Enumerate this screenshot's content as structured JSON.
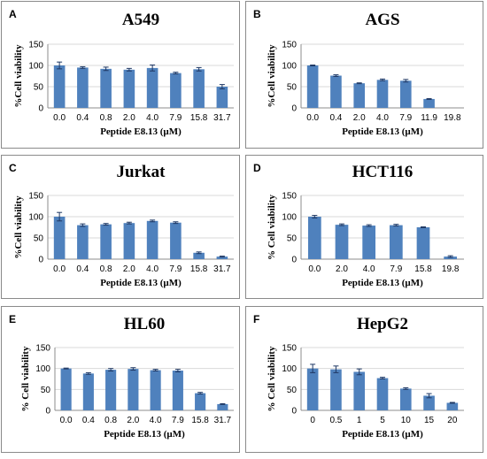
{
  "chart_data": [
    {
      "type": "bar",
      "panel_label": "A",
      "title": "A549",
      "xlabel": "Peptide E8.13 (µM)",
      "ylabel": "%Cell viability",
      "ylim": [
        0,
        150
      ],
      "yticks": [
        0,
        50,
        100,
        150
      ],
      "grid": true,
      "categories": [
        "0.0",
        "0.4",
        "0.8",
        "2.0",
        "4.0",
        "7.9",
        "15.8",
        "31.7"
      ],
      "values": [
        100,
        95,
        92,
        90,
        94,
        82,
        91,
        50
      ],
      "errors": [
        8,
        2,
        4,
        3,
        7,
        2,
        4,
        5
      ]
    },
    {
      "type": "bar",
      "panel_label": "B",
      "title": "AGS",
      "xlabel": "Peptide E8.13 (µM)",
      "ylabel": "%Cell viability",
      "ylim": [
        0,
        150
      ],
      "yticks": [
        0,
        50,
        100,
        150
      ],
      "grid": true,
      "categories": [
        "0.0",
        "0.4",
        "2.0",
        "4.0",
        "7.9",
        "11.9",
        "19.8"
      ],
      "values": [
        100,
        76,
        58,
        66,
        64,
        21,
        0
      ],
      "errors": [
        1,
        2,
        1,
        2,
        3,
        1,
        0
      ]
    },
    {
      "type": "bar",
      "panel_label": "C",
      "title": "Jurkat",
      "xlabel": "Peptide E8.13 (µM)",
      "ylabel": "%Cell viability",
      "ylim": [
        0,
        150
      ],
      "yticks": [
        0,
        50,
        100,
        150
      ],
      "grid": true,
      "categories": [
        "0.0",
        "0.4",
        "0.8",
        "2.0",
        "4.0",
        "7.9",
        "15.8",
        "31.7"
      ],
      "values": [
        100,
        80,
        82,
        85,
        90,
        86,
        15,
        6
      ],
      "errors": [
        10,
        3,
        2,
        2,
        2,
        2,
        2,
        1
      ]
    },
    {
      "type": "bar",
      "panel_label": "D",
      "title": "HCT116",
      "xlabel": "Peptide E8.13 (µM)",
      "ylabel": "% Cell viability",
      "ylim": [
        0,
        150
      ],
      "yticks": [
        0,
        50,
        100,
        150
      ],
      "grid": true,
      "categories": [
        "0.0",
        "2.0",
        "4.0",
        "7.9",
        "15.8",
        "19.8"
      ],
      "values": [
        100,
        81,
        79,
        80,
        75,
        6
      ],
      "errors": [
        3,
        2,
        2,
        2,
        1,
        2
      ]
    },
    {
      "type": "bar",
      "panel_label": "E",
      "title": "HL60",
      "xlabel": "Peptide E8.13 (µM)",
      "ylabel": "% Cell viability",
      "ylim": [
        0,
        150
      ],
      "yticks": [
        0,
        50,
        100,
        150
      ],
      "grid": true,
      "categories": [
        "0.0",
        "0.4",
        "0.8",
        "2.0",
        "4.0",
        "7.9",
        "15.8",
        "31.7"
      ],
      "values": [
        100,
        88,
        97,
        99,
        96,
        95,
        41,
        15
      ],
      "errors": [
        1,
        2,
        3,
        3,
        2,
        3,
        2,
        1
      ]
    },
    {
      "type": "bar",
      "panel_label": "F",
      "title": "HepG2",
      "xlabel": "Peptide E8.13 (µM)",
      "ylabel": "% Cell viability",
      "ylim": [
        0,
        150
      ],
      "yticks": [
        0,
        50,
        100,
        150
      ],
      "grid": true,
      "categories": [
        "0",
        "0.5",
        "1",
        "5",
        "10",
        "15",
        "20"
      ],
      "values": [
        100,
        98,
        92,
        77,
        52,
        35,
        18
      ],
      "errors": [
        10,
        8,
        7,
        2,
        2,
        5,
        1
      ]
    }
  ]
}
